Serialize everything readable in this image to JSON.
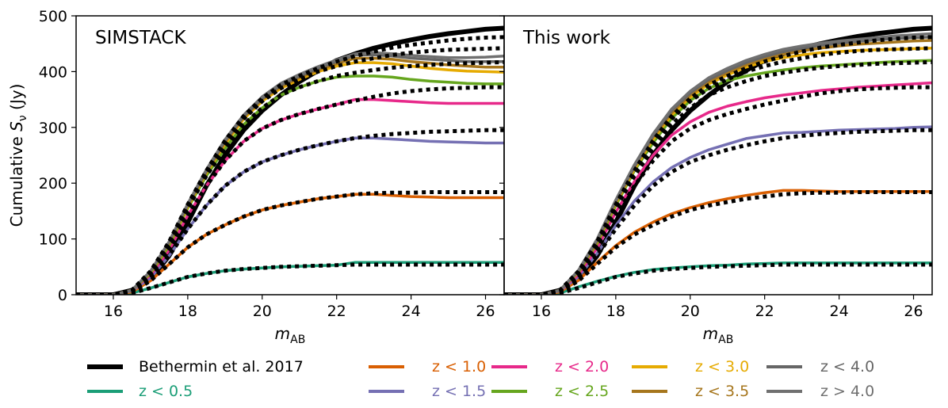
{
  "chart_data": {
    "type": "line",
    "ylabel": "Cumulative  S_ν (Jy)",
    "ylabel_main": "Cumulative  ",
    "ylabel_var": "S",
    "ylabel_sub": "ν",
    "ylabel_unit": " (Jy)",
    "xlabel_main": "m",
    "xlabel_sub": "AB",
    "xlim": [
      15,
      26.5
    ],
    "ylim": [
      0,
      500
    ],
    "xticks": [
      "16",
      "18",
      "20",
      "22",
      "24",
      "26"
    ],
    "yticks": [
      "0",
      "100",
      "200",
      "300",
      "400",
      "500"
    ],
    "colors": {
      "Bethermin et al. 2017": "#000000",
      "z < 0.5": "#1b9e77",
      "z < 1.0": "#d95f02",
      "z < 1.5": "#7570b3",
      "z < 2.0": "#e7298a",
      "z < 2.5": "#66a61e",
      "z < 3.0": "#e6ab02",
      "z < 3.5": "#a6761d",
      "z < 4.0": "#666666",
      "z > 4.0": "#707070"
    },
    "legend": [
      "Bethermin et al. 2017",
      "z < 0.5",
      "z < 1.0",
      "z < 1.5",
      "z < 2.0",
      "z < 2.5",
      "z < 3.0",
      "z < 3.5",
      "z < 4.0",
      "z > 4.0"
    ],
    "legend_position": "below",
    "x": [
      15,
      15.5,
      16,
      16.5,
      17,
      17.5,
      18,
      18.5,
      19,
      19.5,
      20,
      20.5,
      21,
      21.5,
      22,
      22.5,
      23,
      23.5,
      24,
      24.5,
      25,
      25.5,
      26,
      26.5
    ],
    "bethermin_total": [
      0,
      0,
      0,
      8,
      28,
      70,
      130,
      195,
      250,
      295,
      330,
      358,
      382,
      402,
      420,
      432,
      442,
      450,
      457,
      463,
      468,
      472,
      476,
      478
    ],
    "true_cumulative": [
      {
        "name": "z < 0.5",
        "values": [
          0,
          0,
          0,
          3,
          12,
          22,
          32,
          38,
          43,
          46,
          48,
          50,
          51,
          52,
          53,
          54,
          54,
          54,
          54,
          54,
          54,
          54,
          54,
          54
        ]
      },
      {
        "name": "z < 1.0",
        "values": [
          0,
          0,
          0,
          5,
          25,
          55,
          85,
          108,
          125,
          140,
          152,
          160,
          166,
          172,
          176,
          180,
          182,
          183,
          183,
          184,
          184,
          184,
          184,
          184
        ]
      },
      {
        "name": "z < 1.5",
        "values": [
          0,
          0,
          0,
          7,
          30,
          70,
          118,
          160,
          195,
          220,
          238,
          250,
          260,
          268,
          275,
          281,
          285,
          288,
          290,
          292,
          293,
          294,
          295,
          295
        ]
      },
      {
        "name": "z < 2.0",
        "values": [
          0,
          0,
          0,
          8,
          35,
          80,
          142,
          195,
          240,
          275,
          298,
          313,
          324,
          333,
          341,
          348,
          355,
          361,
          365,
          368,
          370,
          371,
          372,
          372
        ]
      },
      {
        "name": "z < 2.5",
        "values": [
          0,
          0,
          0,
          8,
          38,
          88,
          155,
          213,
          262,
          305,
          335,
          358,
          372,
          383,
          392,
          398,
          403,
          407,
          410,
          412,
          414,
          415,
          416,
          417
        ]
      },
      {
        "name": "z < 3.0",
        "values": [
          0,
          0,
          0,
          8,
          40,
          92,
          158,
          218,
          270,
          315,
          347,
          370,
          386,
          400,
          410,
          418,
          424,
          430,
          434,
          437,
          439,
          440,
          441,
          442
        ]
      },
      {
        "name": "z < 4.0",
        "values": [
          0,
          0,
          0,
          8,
          42,
          95,
          162,
          222,
          276,
          320,
          352,
          376,
          392,
          406,
          418,
          428,
          436,
          443,
          448,
          452,
          456,
          459,
          461,
          462
        ]
      }
    ],
    "panels": [
      {
        "title": "SIMSTACK",
        "series": [
          {
            "name": "z < 0.5",
            "values": [
              0,
              0,
              0,
              3,
              12,
              22,
              32,
              38,
              43,
              46,
              48,
              50,
              51,
              52,
              53,
              58,
              58,
              58,
              58,
              58,
              58,
              58,
              58,
              58
            ]
          },
          {
            "name": "z < 1.0",
            "values": [
              0,
              0,
              0,
              5,
              25,
              55,
              85,
              108,
              125,
              140,
              152,
              160,
              166,
              172,
              176,
              180,
              180,
              178,
              176,
              175,
              174,
              174,
              174,
              174
            ]
          },
          {
            "name": "z < 1.5",
            "values": [
              0,
              0,
              0,
              7,
              30,
              70,
              118,
              160,
              195,
              220,
              238,
              250,
              260,
              268,
              275,
              281,
              281,
              279,
              277,
              275,
              274,
              273,
              272,
              272
            ]
          },
          {
            "name": "z < 2.0",
            "values": [
              0,
              0,
              0,
              8,
              35,
              80,
              142,
              195,
              240,
              275,
              298,
              313,
              324,
              333,
              341,
              350,
              350,
              348,
              346,
              344,
              343,
              343,
              343,
              343
            ]
          },
          {
            "name": "z < 2.5",
            "values": [
              0,
              0,
              0,
              8,
              38,
              88,
              155,
              213,
              262,
              305,
              335,
              358,
              372,
              383,
              390,
              392,
              392,
              390,
              386,
              383,
              381,
              379,
              378,
              378
            ]
          },
          {
            "name": "z < 3.0",
            "values": [
              0,
              0,
              0,
              8,
              40,
              92,
              158,
              218,
              270,
              315,
              347,
              370,
              386,
              400,
              410,
              416,
              416,
              414,
              410,
              406,
              403,
              401,
              400,
              399
            ]
          },
          {
            "name": "z < 3.5",
            "values": [
              0,
              0,
              0,
              8,
              41,
              93,
              160,
              220,
              273,
              318,
              350,
              373,
              389,
              403,
              414,
              424,
              424,
              422,
              418,
              415,
              412,
              410,
              408,
              408
            ]
          },
          {
            "name": "z < 4.0",
            "values": [
              0,
              0,
              0,
              8,
              42,
              95,
              162,
              222,
              276,
              320,
              352,
              376,
              392,
              406,
              418,
              430,
              430,
              428,
              424,
              422,
              420,
              418,
              418,
              418
            ]
          },
          {
            "name": "z > 4.0",
            "values": [
              0,
              0,
              0,
              8,
              42,
              95,
              163,
              224,
              278,
              322,
              355,
              379,
              395,
              409,
              421,
              432,
              434,
              432,
              429,
              427,
              425,
              425,
              426,
              428
            ]
          }
        ]
      },
      {
        "title": "This work",
        "series": [
          {
            "name": "z < 0.5",
            "values": [
              0,
              0,
              0,
              3,
              14,
              24,
              33,
              40,
              45,
              48,
              50,
              52,
              53,
              55,
              56,
              57,
              57,
              57,
              57,
              57,
              57,
              57,
              57,
              57
            ]
          },
          {
            "name": "z < 1.0",
            "values": [
              0,
              0,
              0,
              5,
              26,
              58,
              88,
              112,
              130,
              145,
              156,
              165,
              172,
              178,
              183,
              187,
              187,
              186,
              185,
              185,
              185,
              185,
              185,
              185
            ]
          },
          {
            "name": "z < 1.5",
            "values": [
              0,
              0,
              0,
              7,
              32,
              74,
              124,
              168,
              202,
              228,
              246,
              260,
              270,
              280,
              285,
              290,
              291,
              293,
              295,
              296,
              297,
              298,
              300,
              301
            ]
          },
          {
            "name": "z < 2.0",
            "values": [
              0,
              0,
              0,
              8,
              36,
              84,
              148,
              203,
              250,
              286,
              310,
              327,
              338,
              346,
              353,
              358,
              362,
              366,
              369,
              372,
              374,
              376,
              378,
              380
            ]
          },
          {
            "name": "z < 2.5",
            "values": [
              0,
              0,
              0,
              8,
              40,
              92,
              160,
              222,
              272,
              316,
              348,
              370,
              384,
              392,
              398,
              403,
              407,
              410,
              412,
              414,
              416,
              418,
              419,
              420
            ]
          },
          {
            "name": "z < 3.0",
            "values": [
              0,
              0,
              0,
              8,
              41,
              95,
              164,
              225,
              278,
              322,
              354,
              378,
              394,
              408,
              418,
              425,
              430,
              434,
              436,
              438,
              439,
              440,
              441,
              442
            ]
          },
          {
            "name": "z < 3.5",
            "values": [
              0,
              0,
              0,
              8,
              42,
              96,
              166,
              228,
              282,
              326,
              358,
              382,
              398,
              412,
              423,
              431,
              437,
              442,
              446,
              449,
              451,
              453,
              455,
              456
            ]
          },
          {
            "name": "z < 4.0",
            "values": [
              0,
              0,
              0,
              8,
              43,
              98,
              168,
              230,
              285,
              330,
              362,
              386,
              402,
              416,
              427,
              436,
              442,
              447,
              451,
              454,
              457,
              459,
              461,
              462
            ]
          },
          {
            "name": "z > 4.0",
            "values": [
              0,
              0,
              0,
              8,
              44,
              100,
              170,
              233,
              288,
              333,
              365,
              389,
              406,
              420,
              431,
              440,
              446,
              451,
              455,
              458,
              461,
              464,
              466,
              468
            ]
          }
        ]
      }
    ]
  }
}
